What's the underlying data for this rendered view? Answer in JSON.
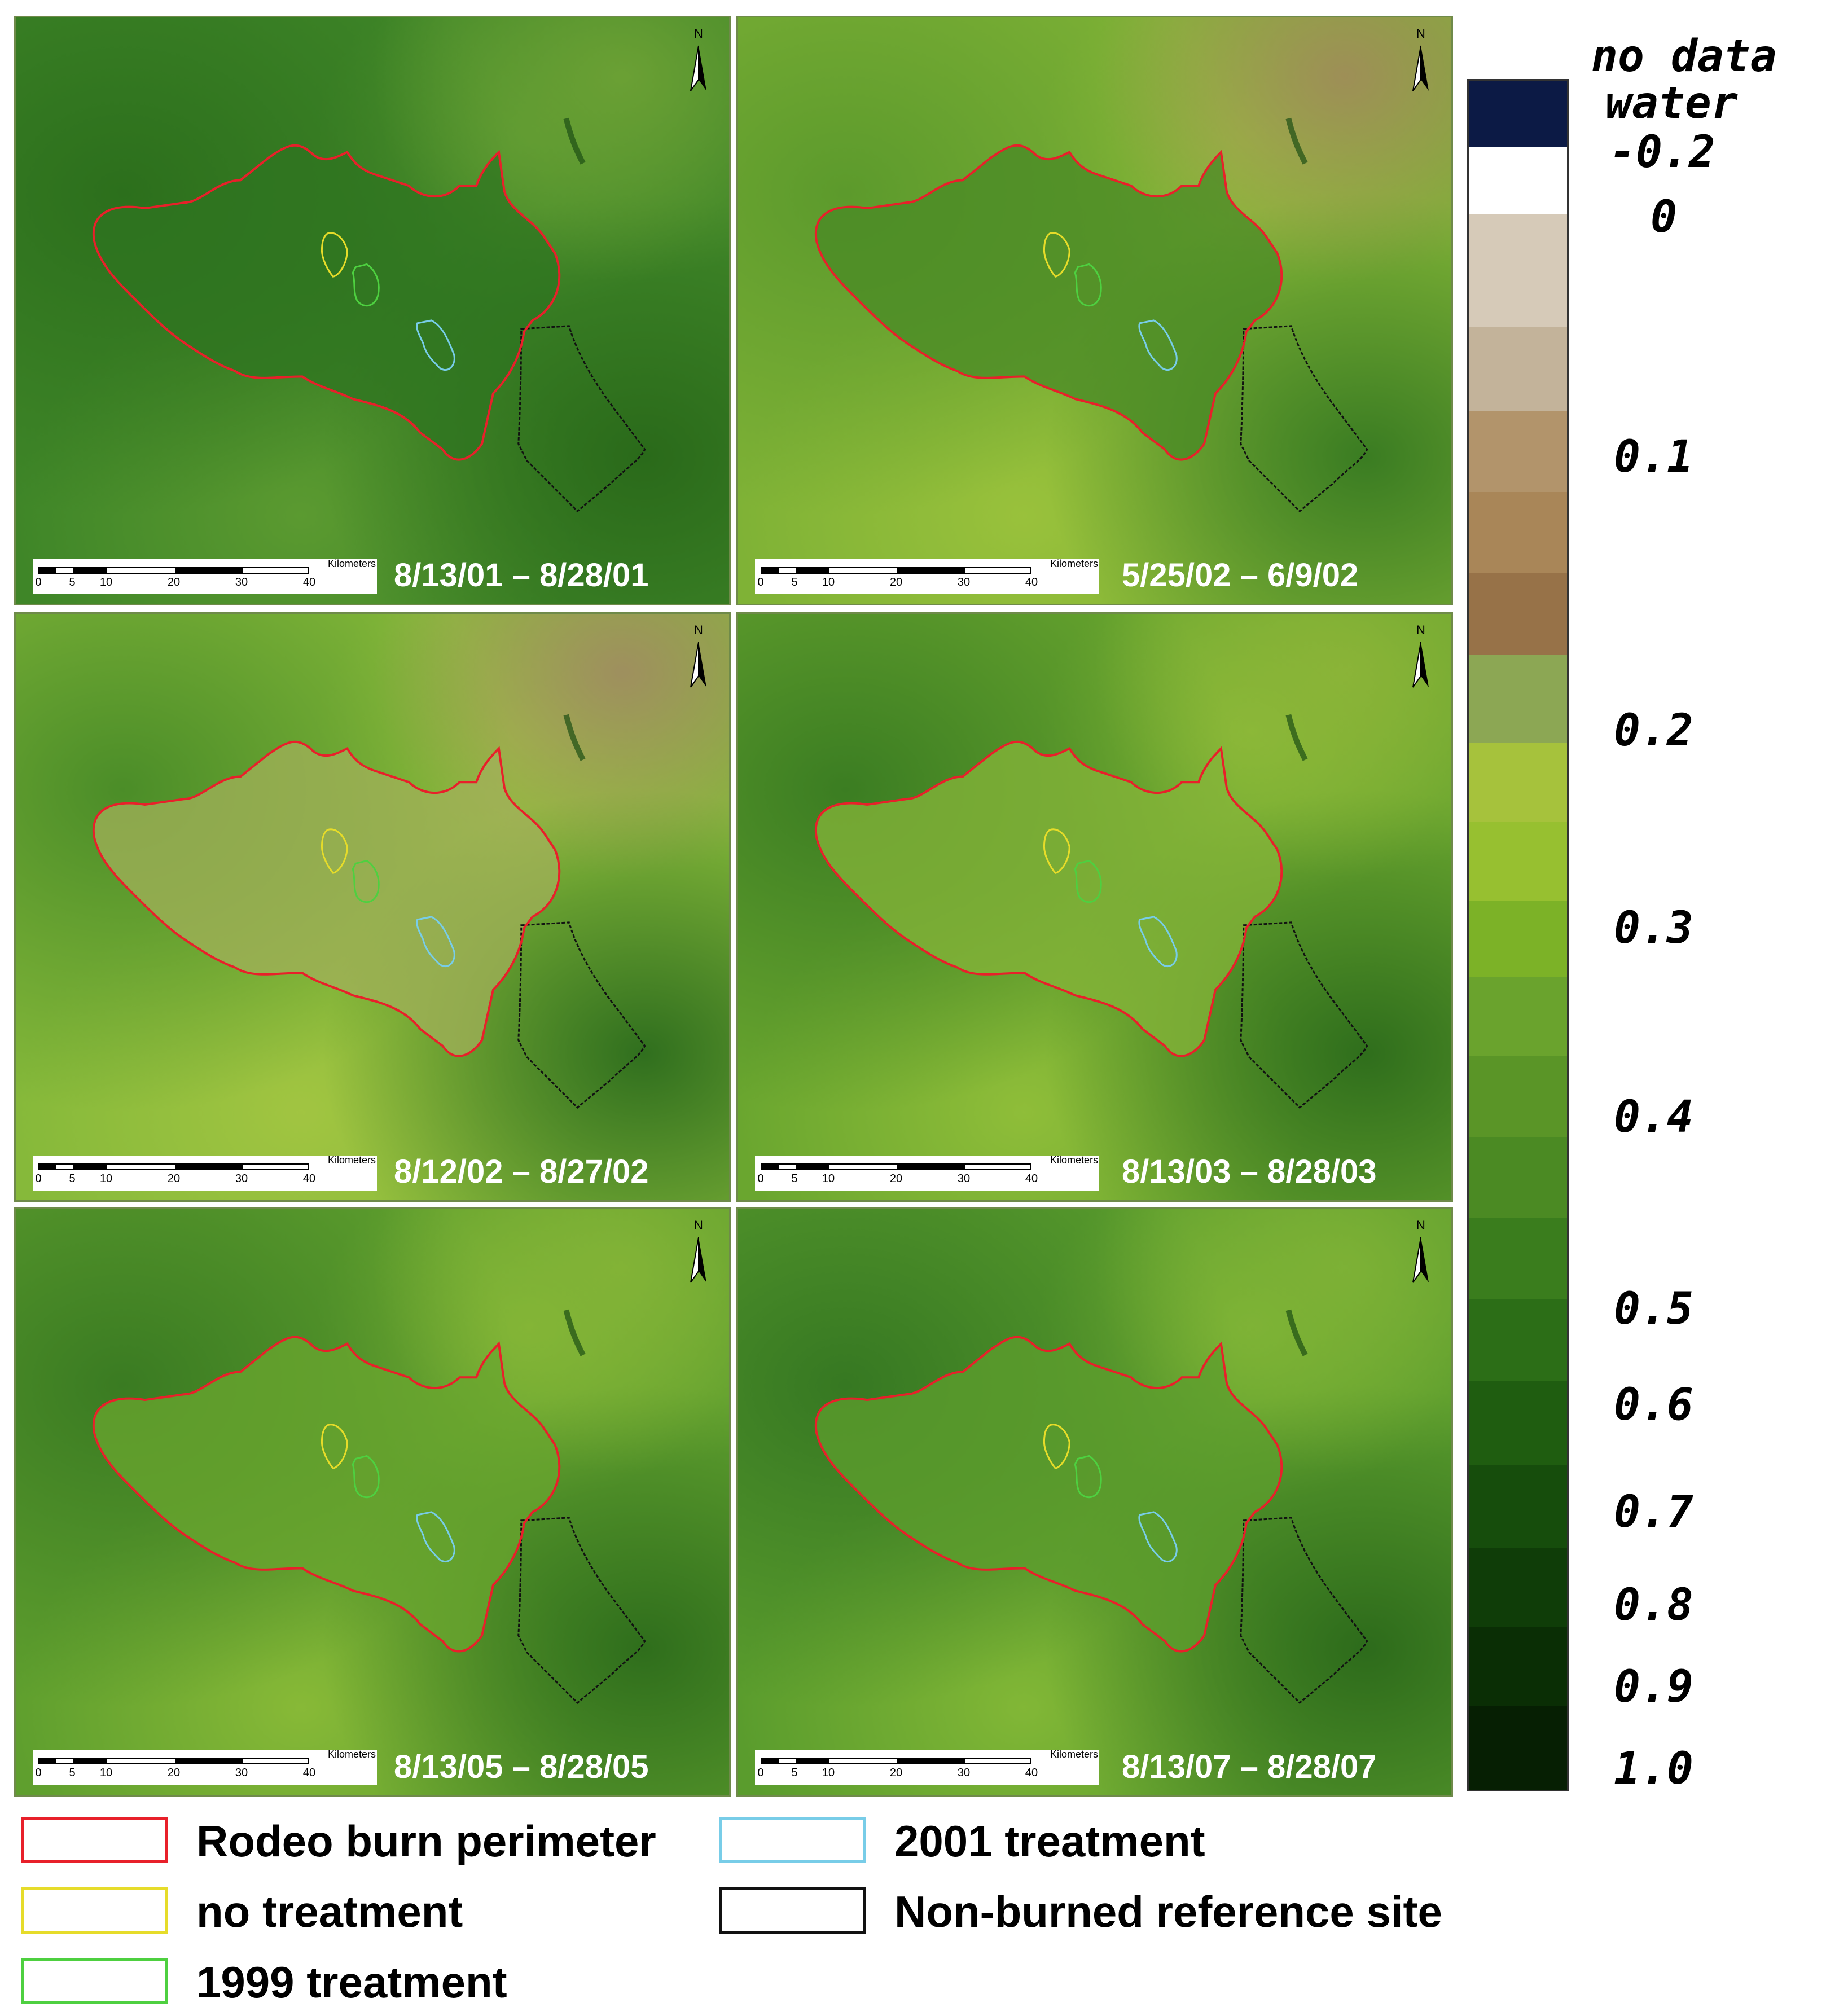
{
  "panels": [
    {
      "date": "8/13/01 – 8/28/01",
      "scale_unit": "Kilometers",
      "north": "N",
      "ticks": [
        "0",
        "5",
        "10",
        "20",
        "30",
        "40"
      ],
      "tone": "dark"
    },
    {
      "date": "5/25/02 – 6/9/02",
      "scale_unit": "Kilometers",
      "north": "N",
      "ticks": [
        "0",
        "5",
        "10",
        "20",
        "30",
        "40"
      ],
      "tone": "spring"
    },
    {
      "date": "8/12/02 – 8/27/02",
      "scale_unit": "Kilometers",
      "north": "N",
      "ticks": [
        "0",
        "5",
        "10",
        "20",
        "30",
        "40"
      ],
      "tone": "burned"
    },
    {
      "date": "8/13/03 – 8/28/03",
      "scale_unit": "Kilometers",
      "north": "N",
      "ticks": [
        "0",
        "5",
        "10",
        "20",
        "30",
        "40"
      ],
      "tone": "recover1"
    },
    {
      "date": "8/13/05 – 8/28/05",
      "scale_unit": "Kilometers",
      "north": "N",
      "ticks": [
        "0",
        "5",
        "10",
        "20",
        "30",
        "40"
      ],
      "tone": "recover2"
    },
    {
      "date": "8/13/07 – 8/28/07",
      "scale_unit": "Kilometers",
      "north": "N",
      "ticks": [
        "0",
        "5",
        "10",
        "20",
        "30",
        "40"
      ],
      "tone": "recover3"
    }
  ],
  "colorbar": {
    "labels": {
      "no_data": "no data",
      "water": "water",
      "l_m02": "-0.2",
      "l_0": "0",
      "l_01": "0.1",
      "l_02": "0.2",
      "l_03": "0.3",
      "l_04": "0.4",
      "l_05": "0.5",
      "l_06": "0.6",
      "l_07": "0.7",
      "l_08": "0.8",
      "l_09": "0.9",
      "l_10": "1.0"
    },
    "colors": [
      "#0c1a45",
      "#ffffff",
      "#d6cab8",
      "#c3b39a",
      "#b2946b",
      "#a98658",
      "#977248",
      "#8ca754",
      "#a6c23c",
      "#97c030",
      "#7cb227",
      "#6aa32d",
      "#5a9527",
      "#4b8a23",
      "#3a7d1d",
      "#2c6e17",
      "#1f5d10",
      "#164d0c",
      "#0f3d08",
      "#0a2e05",
      "#061f03"
    ]
  },
  "legend": [
    {
      "label": "Rodeo burn perimeter",
      "color": "#e8202a"
    },
    {
      "label": "2001 treatment",
      "color": "#78cde8"
    },
    {
      "label": "no treatment",
      "color": "#e6dc2a"
    },
    {
      "label": "Non-burned reference site",
      "color": "#111111"
    },
    {
      "label": "1999 treatment",
      "color": "#4ed040"
    }
  ]
}
